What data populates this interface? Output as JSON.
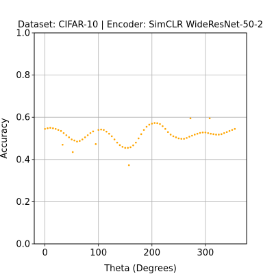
{
  "chart_data": {
    "type": "scatter",
    "title": "Dataset: CIFAR-10 | Encoder: SimCLR WideResNet-50-2",
    "xlabel": "Theta (Degrees)",
    "ylabel": "Accuracy",
    "xlim": [
      -20,
      377
    ],
    "ylim": [
      0.0,
      1.0
    ],
    "xticks": [
      0,
      100,
      200,
      300
    ],
    "yticks": [
      0.0,
      0.2,
      0.4,
      0.6,
      0.8,
      1.0
    ],
    "xtick_labels": [
      "0",
      "100",
      "200",
      "300"
    ],
    "ytick_labels": [
      "0.0",
      "0.2",
      "0.4",
      "0.6",
      "0.8",
      "1.0"
    ],
    "grid": true,
    "marker_color": "#ffa500",
    "x": [
      0,
      5,
      10,
      15,
      20,
      25,
      30,
      33,
      35,
      40,
      45,
      50,
      52,
      55,
      60,
      65,
      70,
      75,
      80,
      85,
      90,
      95,
      100,
      105,
      110,
      115,
      120,
      125,
      130,
      135,
      140,
      145,
      150,
      155,
      157,
      160,
      165,
      170,
      175,
      180,
      185,
      190,
      195,
      200,
      205,
      210,
      215,
      220,
      225,
      230,
      235,
      240,
      245,
      250,
      255,
      260,
      265,
      270,
      272,
      275,
      280,
      285,
      290,
      295,
      300,
      305,
      308,
      310,
      315,
      320,
      325,
      330,
      335,
      340,
      345,
      350,
      355
    ],
    "y": [
      0.545,
      0.548,
      0.55,
      0.548,
      0.545,
      0.54,
      0.535,
      0.47,
      0.525,
      0.515,
      0.505,
      0.495,
      0.435,
      0.49,
      0.485,
      0.488,
      0.495,
      0.505,
      0.515,
      0.525,
      0.533,
      0.473,
      0.54,
      0.542,
      0.54,
      0.532,
      0.522,
      0.51,
      0.495,
      0.48,
      0.468,
      0.46,
      0.455,
      0.455,
      0.373,
      0.458,
      0.467,
      0.48,
      0.5,
      0.52,
      0.54,
      0.555,
      0.565,
      0.57,
      0.573,
      0.572,
      0.568,
      0.558,
      0.545,
      0.53,
      0.518,
      0.51,
      0.505,
      0.5,
      0.498,
      0.498,
      0.502,
      0.508,
      0.595,
      0.513,
      0.518,
      0.522,
      0.526,
      0.528,
      0.528,
      0.525,
      0.595,
      0.522,
      0.52,
      0.518,
      0.518,
      0.52,
      0.525,
      0.53,
      0.535,
      0.54,
      0.545
    ]
  }
}
